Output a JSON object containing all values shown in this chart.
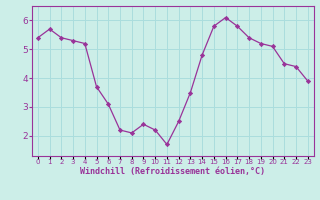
{
  "x": [
    0,
    1,
    2,
    3,
    4,
    5,
    6,
    7,
    8,
    9,
    10,
    11,
    12,
    13,
    14,
    15,
    16,
    17,
    18,
    19,
    20,
    21,
    22,
    23
  ],
  "y": [
    5.4,
    5.7,
    5.4,
    5.3,
    5.2,
    3.7,
    3.1,
    2.2,
    2.1,
    2.4,
    2.2,
    1.7,
    2.5,
    3.5,
    4.8,
    5.8,
    6.1,
    5.8,
    5.4,
    5.2,
    5.1,
    4.5,
    4.4,
    3.9
  ],
  "line_color": "#993399",
  "marker_color": "#993399",
  "bg_color": "#cceee8",
  "grid_color": "#aadddd",
  "xlabel": "Windchill (Refroidissement éolien,°C)",
  "xlabel_color": "#993399",
  "tick_color": "#993399",
  "spine_color": "#993399",
  "ylim": [
    1.3,
    6.5
  ],
  "yticks": [
    2,
    3,
    4,
    5,
    6
  ],
  "xlim": [
    -0.5,
    23.5
  ]
}
